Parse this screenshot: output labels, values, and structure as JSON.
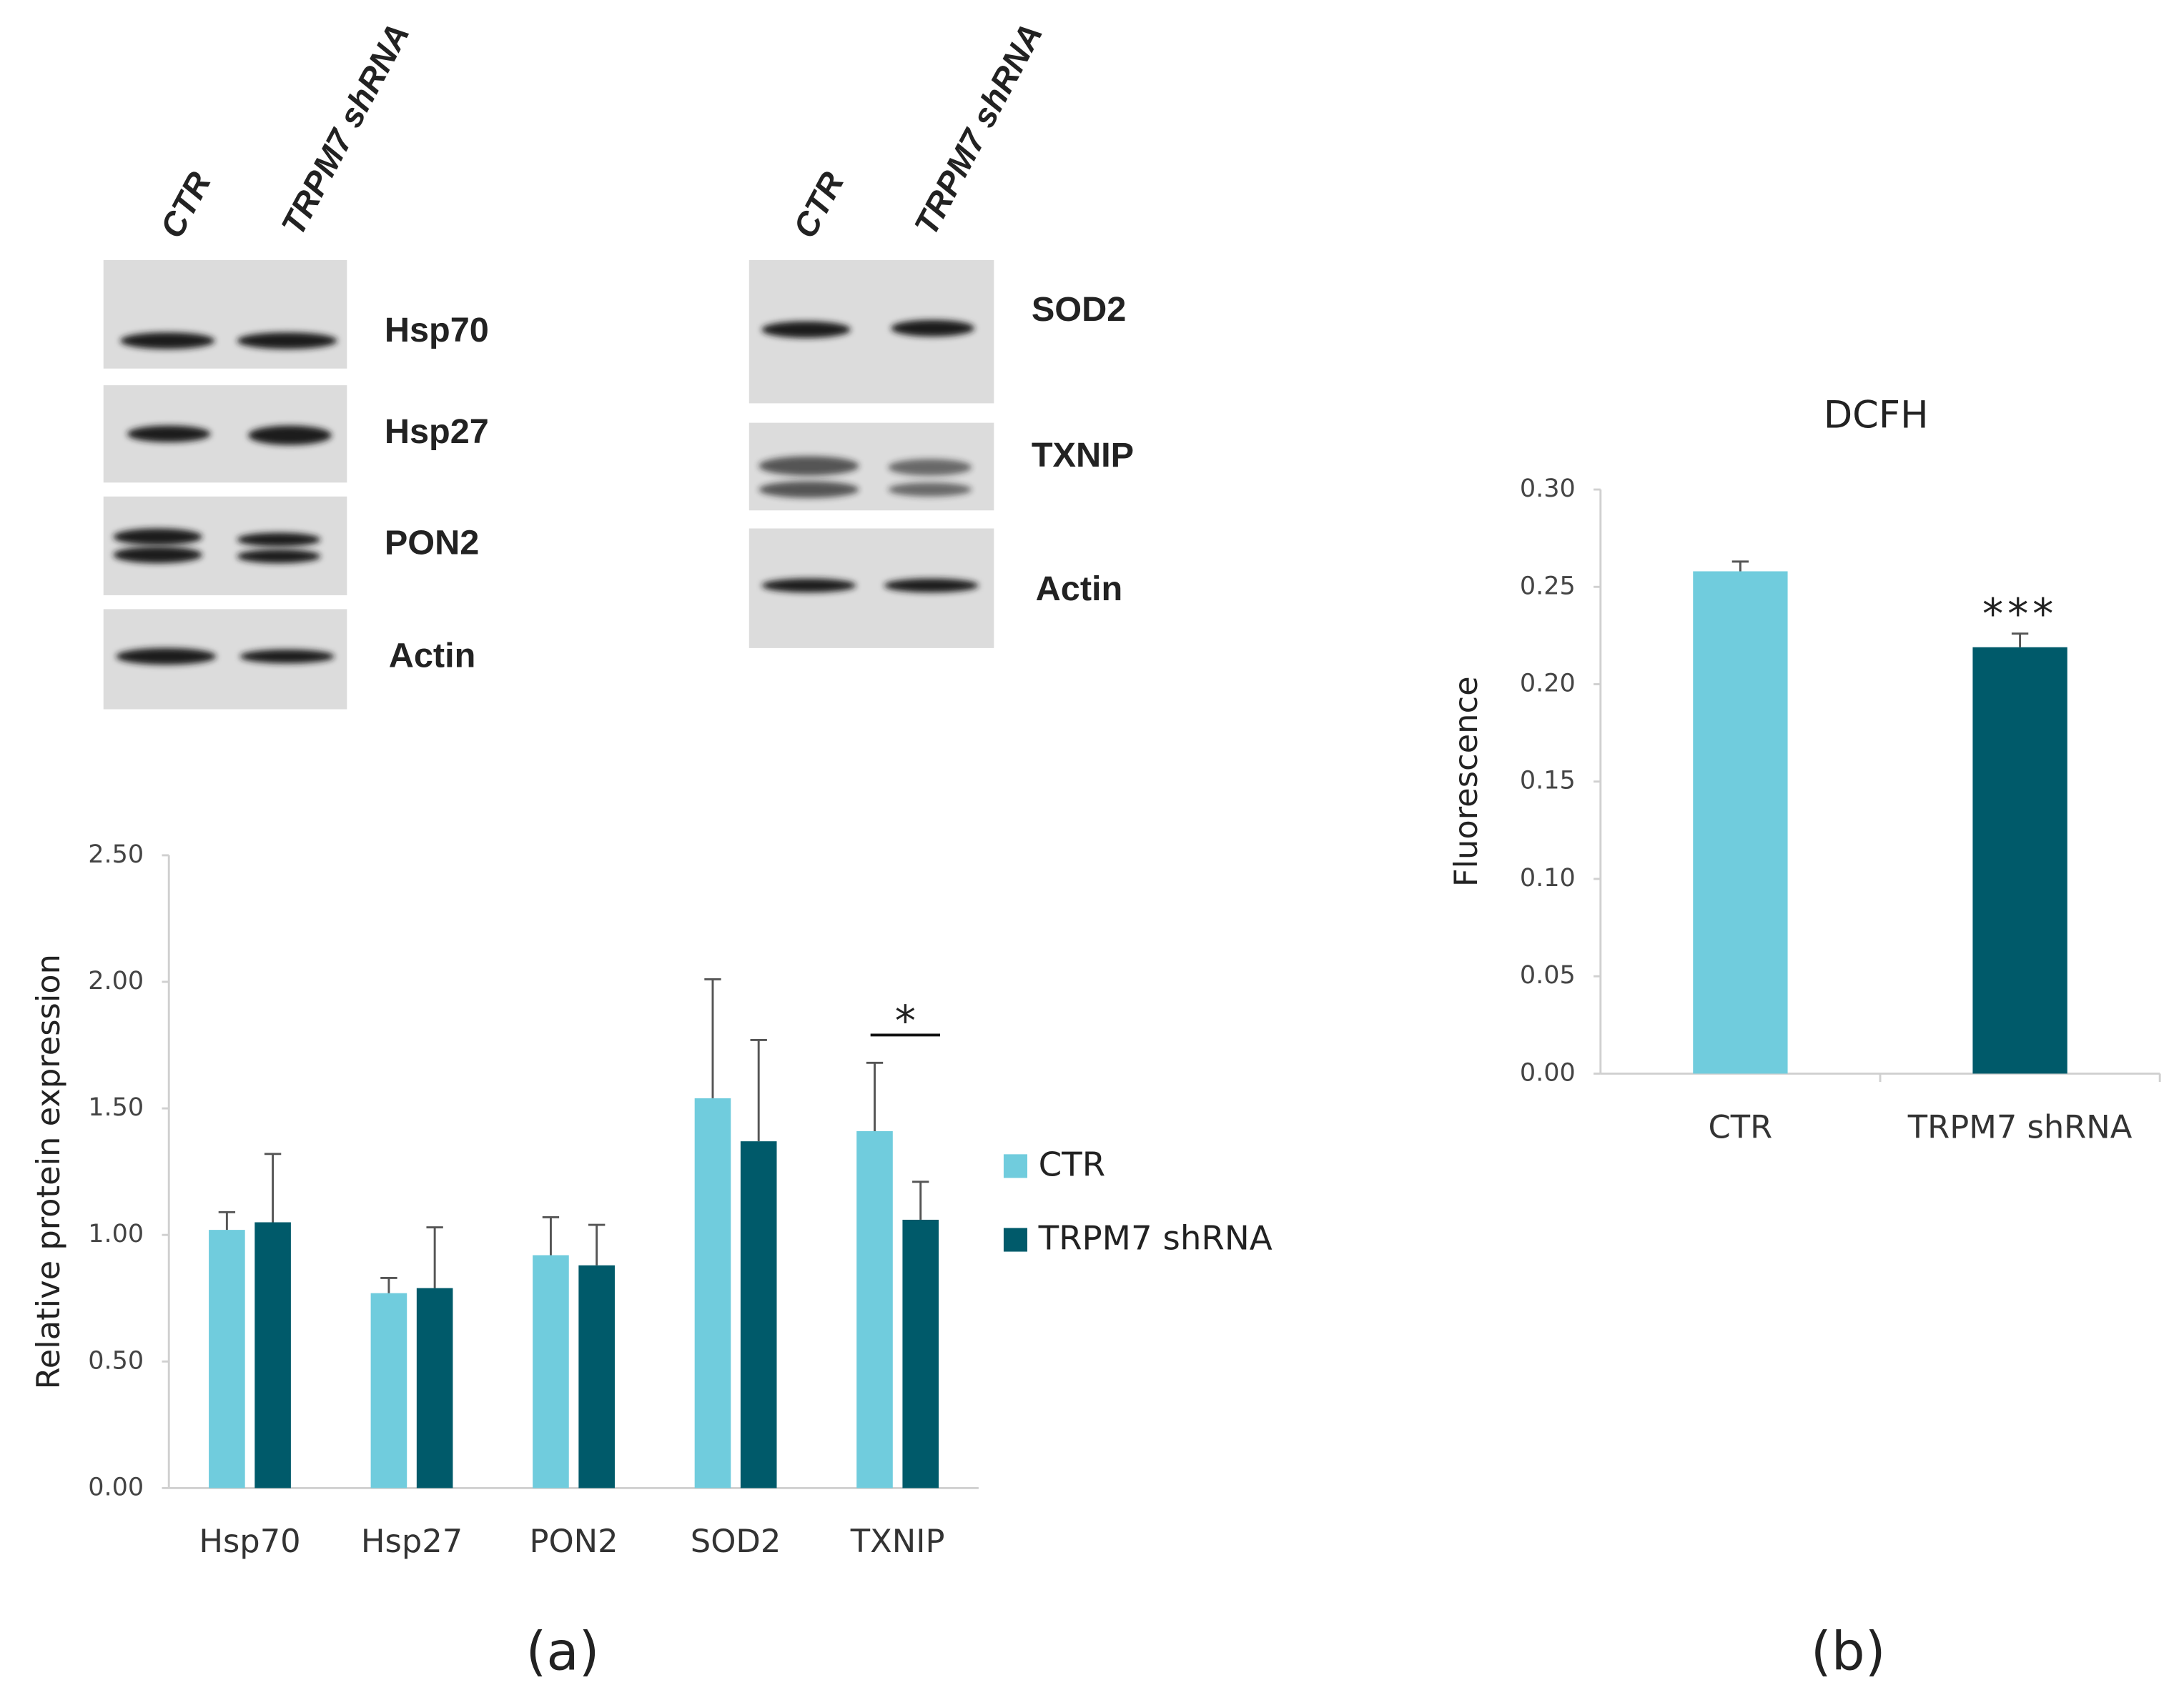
{
  "blots": [
    {
      "lanes": [
        "CTR",
        "TRPM7 shRNA"
      ],
      "bands": [
        "Hsp70",
        "Hsp27",
        "PON2",
        "Actin"
      ]
    },
    {
      "lanes": [
        "CTR",
        "TRPM7 shRNA"
      ],
      "bands": [
        "SOD2",
        "TXNIP",
        "Actin"
      ]
    }
  ],
  "panel_labels": [
    "(a)",
    "(b)"
  ],
  "chart_data": [
    {
      "type": "bar",
      "ylabel": "Relative protein expression",
      "categories": [
        "Hsp70",
        "Hsp27",
        "PON2",
        "SOD2",
        "TXNIP"
      ],
      "series": [
        {
          "name": "CTR",
          "color": "#70ccdd",
          "values": [
            1.02,
            0.77,
            0.92,
            1.54,
            1.41
          ],
          "errors": [
            0.07,
            0.06,
            0.15,
            0.47,
            0.27
          ]
        },
        {
          "name": "TRPM7 shRNA",
          "color": "#005a6a",
          "values": [
            1.05,
            0.79,
            0.88,
            1.37,
            1.06
          ],
          "errors": [
            0.27,
            0.24,
            0.16,
            0.4,
            0.15
          ]
        }
      ],
      "ylim": [
        0,
        2.5
      ],
      "yticks": [
        {
          "value": 0,
          "label": "0.00"
        },
        {
          "value": 0.5,
          "label": "0.50"
        },
        {
          "value": 1,
          "label": "1.00"
        },
        {
          "value": 1.5,
          "label": "1.50"
        },
        {
          "value": 2,
          "label": "2.00"
        },
        {
          "value": 2.5,
          "label": "2.50"
        }
      ],
      "annotation": "*",
      "legend": "right"
    },
    {
      "type": "bar",
      "title": "DCFH",
      "ylabel": "Fluorescence",
      "categories": [
        "CTR",
        "TRPM7 shRNA"
      ],
      "values": [
        0.258,
        0.219
      ],
      "errors": [
        0.005,
        0.007
      ],
      "colors": [
        "#70ccdd",
        "#005a6a"
      ],
      "ylim": [
        0,
        0.3
      ],
      "yticks": [
        {
          "value": 0,
          "label": "0.00"
        },
        {
          "value": 0.05,
          "label": "0.05"
        },
        {
          "value": 0.1,
          "label": "0.10"
        },
        {
          "value": 0.15,
          "label": "0.15"
        },
        {
          "value": 0.2,
          "label": "0.20"
        },
        {
          "value": 0.25,
          "label": "0.25"
        },
        {
          "value": 0.3,
          "label": "0.30"
        }
      ],
      "annotation": "***"
    }
  ]
}
